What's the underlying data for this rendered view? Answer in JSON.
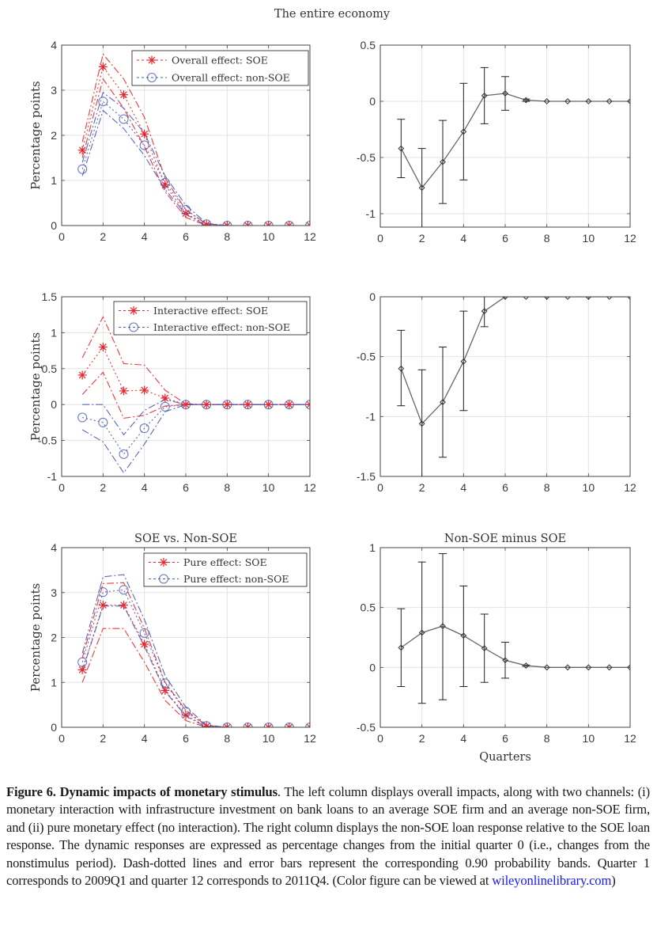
{
  "suptitle": "The entire economy",
  "caption": {
    "label": "Figure 6.",
    "title": "Dynamic impacts of monetary stimulus",
    "body": ". The left column displays overall impacts, along with two channels: (i) monetary interaction with infrastructure investment on bank loans to an average SOE firm and an average non-SOE firm, and (ii) pure monetary effect (no interaction). The right column displays the non-SOE loan response relative to the SOE loan response. The dynamic responses are expressed as percentage changes from the initial quarter 0 (i.e., changes from the nonstimulus period). Dash-dotted lines and error bars represent the corresponding 0.90 probability bands. Quarter 1 corresponds to 2009Q1 and quarter 12 corresponds to 2011Q4. (Color figure can be viewed at ",
    "link_text": "wileyonlinelibrary.com",
    "tail": ")"
  },
  "colors": {
    "soe": "#e8252b",
    "nonsoe": "#4a58b0",
    "diff": "#333333"
  },
  "chart_data": [
    {
      "id": "overall",
      "type": "line",
      "title": "",
      "xlabel": "",
      "ylabel": "Percentage points",
      "xlim": [
        0,
        12
      ],
      "ylim": [
        0,
        4
      ],
      "xticks": [
        0,
        2,
        4,
        6,
        8,
        10,
        12
      ],
      "yticks": [
        0,
        1,
        2,
        3,
        4
      ],
      "ytick_labels": [
        "0",
        "1",
        "2",
        "3",
        "4"
      ],
      "grid": true,
      "legend": "top-right",
      "x": [
        1,
        2,
        3,
        4,
        5,
        6,
        7,
        8,
        9,
        10,
        11,
        12
      ],
      "series": [
        {
          "name": "Overall effect: SOE",
          "group": "soe",
          "marker": "asterisk",
          "values": [
            1.67,
            3.52,
            2.9,
            2.03,
            0.9,
            0.27,
            0.02,
            0,
            0,
            0,
            0,
            0
          ],
          "upper": [
            1.85,
            3.8,
            3.25,
            2.4,
            1.05,
            0.35,
            0.04,
            0,
            0,
            0,
            0,
            0
          ],
          "lower": [
            1.5,
            3.25,
            2.6,
            1.75,
            0.75,
            0.18,
            0.0,
            0,
            0,
            0,
            0,
            0
          ]
        },
        {
          "name": "Overall effect: non-SOE",
          "group": "nonsoe",
          "marker": "circle",
          "values": [
            1.25,
            2.75,
            2.36,
            1.78,
            0.95,
            0.35,
            0.03,
            0,
            0,
            0,
            0,
            0
          ],
          "upper": [
            1.4,
            2.95,
            2.6,
            2.05,
            1.1,
            0.45,
            0.05,
            0,
            0,
            0,
            0,
            0
          ],
          "lower": [
            1.1,
            2.55,
            2.15,
            1.55,
            0.8,
            0.25,
            0.0,
            0,
            0,
            0,
            0,
            0
          ]
        }
      ]
    },
    {
      "id": "overall-diff",
      "type": "line",
      "title": "",
      "xlabel": "",
      "ylabel": "",
      "xlim": [
        0,
        12
      ],
      "ylim": [
        -1.12,
        0.5
      ],
      "xticks": [
        0,
        2,
        4,
        6,
        8,
        10,
        12
      ],
      "yticks": [
        -1,
        -0.5,
        0,
        0.5
      ],
      "ytick_labels": [
        "-1",
        "-0.5",
        "0",
        "0.5"
      ],
      "grid": true,
      "x": [
        1,
        2,
        3,
        4,
        5,
        6,
        7,
        8,
        9,
        10,
        11,
        12
      ],
      "series": [
        {
          "name": "Non-SOE minus SOE",
          "group": "diff",
          "marker": "diamond",
          "values": [
            -0.42,
            -0.77,
            -0.54,
            -0.27,
            0.05,
            0.07,
            0.01,
            0,
            0,
            0,
            0,
            0
          ],
          "upper": [
            -0.16,
            -0.42,
            -0.17,
            0.16,
            0.3,
            0.22,
            0.02,
            0,
            0,
            0,
            0,
            0
          ],
          "lower": [
            -0.68,
            -1.15,
            -0.91,
            -0.7,
            -0.2,
            -0.08,
            0.0,
            0,
            0,
            0,
            0,
            0
          ]
        }
      ]
    },
    {
      "id": "interactive",
      "type": "line",
      "title": "",
      "xlabel": "",
      "ylabel": "Percentage points",
      "xlim": [
        0,
        12
      ],
      "ylim": [
        -1,
        1.5
      ],
      "xticks": [
        0,
        2,
        4,
        6,
        8,
        10,
        12
      ],
      "yticks": [
        -1,
        -0.5,
        0,
        0.5,
        1,
        1.5
      ],
      "ytick_labels": [
        "-1",
        "-0.5",
        "0",
        "0.5",
        "1",
        "1.5"
      ],
      "grid": true,
      "legend": "top-right",
      "x": [
        1,
        2,
        3,
        4,
        5,
        6,
        7,
        8,
        9,
        10,
        11,
        12
      ],
      "series": [
        {
          "name": "Interactive effect: SOE",
          "group": "soe",
          "marker": "asterisk",
          "values": [
            0.41,
            0.8,
            0.19,
            0.2,
            0.09,
            0,
            0,
            0,
            0,
            0,
            0,
            0
          ],
          "upper": [
            0.65,
            1.22,
            0.57,
            0.55,
            0.2,
            0.01,
            0,
            0,
            0,
            0,
            0,
            0
          ],
          "lower": [
            0.14,
            0.45,
            -0.19,
            -0.15,
            -0.02,
            0,
            0,
            0,
            0,
            0,
            0,
            0
          ]
        },
        {
          "name": "Interactive effect: non-SOE",
          "group": "nonsoe",
          "marker": "circle",
          "values": [
            -0.18,
            -0.25,
            -0.69,
            -0.33,
            -0.03,
            0,
            0,
            0,
            0,
            0,
            0,
            0
          ],
          "upper": [
            0.0,
            0.0,
            -0.42,
            -0.08,
            0.07,
            0,
            0,
            0,
            0,
            0,
            0,
            0
          ],
          "lower": [
            -0.35,
            -0.52,
            -0.95,
            -0.55,
            -0.1,
            0,
            0,
            0,
            0,
            0,
            0,
            0
          ]
        }
      ]
    },
    {
      "id": "interactive-diff",
      "type": "line",
      "title": "",
      "xlabel": "",
      "ylabel": "",
      "xlim": [
        0,
        12
      ],
      "ylim": [
        -1.5,
        0
      ],
      "xticks": [
        0,
        2,
        4,
        6,
        8,
        10,
        12
      ],
      "yticks": [
        -1.5,
        -1,
        -0.5,
        0
      ],
      "ytick_labels": [
        "-1.5",
        "-1",
        "-0.5",
        "0"
      ],
      "grid": true,
      "x": [
        1,
        2,
        3,
        4,
        5,
        6,
        7,
        8,
        9,
        10,
        11,
        12
      ],
      "series": [
        {
          "name": "Non-SOE minus SOE",
          "group": "diff",
          "marker": "diamond",
          "values": [
            -0.6,
            -1.06,
            -0.88,
            -0.54,
            -0.12,
            0,
            0,
            0,
            0,
            0,
            0,
            0
          ],
          "upper": [
            -0.28,
            -0.61,
            -0.42,
            -0.12,
            0.0,
            0,
            0,
            0,
            0,
            0,
            0,
            0
          ],
          "lower": [
            -0.91,
            -1.5,
            -1.34,
            -0.95,
            -0.25,
            0,
            0,
            0,
            0,
            0,
            0,
            0
          ]
        }
      ]
    },
    {
      "id": "pure",
      "type": "line",
      "title": "SOE vs. Non-SOE",
      "xlabel": "",
      "ylabel": "Percentage points",
      "xlim": [
        0,
        12
      ],
      "ylim": [
        0,
        4
      ],
      "xticks": [
        0,
        2,
        4,
        6,
        8,
        10,
        12
      ],
      "yticks": [
        0,
        1,
        2,
        3,
        4
      ],
      "ytick_labels": [
        "0",
        "1",
        "2",
        "3",
        "4"
      ],
      "grid": true,
      "legend": "top-right",
      "x": [
        1,
        2,
        3,
        4,
        5,
        6,
        7,
        8,
        9,
        10,
        11,
        12
      ],
      "series": [
        {
          "name": "Pure effect: SOE",
          "group": "soe",
          "marker": "asterisk",
          "values": [
            1.28,
            2.72,
            2.72,
            1.85,
            0.82,
            0.27,
            0.02,
            0,
            0,
            0,
            0,
            0
          ],
          "upper": [
            1.55,
            3.2,
            3.22,
            2.2,
            1.0,
            0.38,
            0.04,
            0,
            0,
            0,
            0,
            0
          ],
          "lower": [
            1.0,
            2.2,
            2.2,
            1.45,
            0.6,
            0.15,
            0.0,
            0,
            0,
            0,
            0,
            0
          ]
        },
        {
          "name": "Pure effect: non-SOE",
          "group": "nonsoe",
          "marker": "circle",
          "values": [
            1.45,
            3.01,
            3.06,
            2.1,
            0.98,
            0.35,
            0.03,
            0,
            0,
            0,
            0,
            0
          ],
          "upper": [
            1.65,
            3.35,
            3.4,
            2.4,
            1.15,
            0.45,
            0.05,
            0,
            0,
            0,
            0,
            0
          ],
          "lower": [
            1.25,
            2.7,
            2.7,
            1.8,
            0.8,
            0.25,
            0.0,
            0,
            0,
            0,
            0,
            0
          ]
        }
      ]
    },
    {
      "id": "pure-diff",
      "type": "line",
      "title": "Non-SOE minus SOE",
      "xlabel": "Quarters",
      "ylabel": "",
      "xlim": [
        0,
        12
      ],
      "ylim": [
        -0.5,
        1
      ],
      "xticks": [
        0,
        2,
        4,
        6,
        8,
        10,
        12
      ],
      "yticks": [
        -0.5,
        0,
        0.5,
        1
      ],
      "ytick_labels": [
        "-0.5",
        "0",
        "0.5",
        "1"
      ],
      "grid": true,
      "x": [
        1,
        2,
        3,
        4,
        5,
        6,
        7,
        8,
        9,
        10,
        11,
        12
      ],
      "series": [
        {
          "name": "Non-SOE minus SOE",
          "group": "diff",
          "marker": "diamond",
          "values": [
            0.165,
            0.29,
            0.345,
            0.265,
            0.16,
            0.06,
            0.015,
            0,
            0,
            0,
            0,
            0
          ],
          "upper": [
            0.49,
            0.88,
            0.95,
            0.68,
            0.445,
            0.21,
            0.02,
            0,
            0,
            0,
            0,
            0
          ],
          "lower": [
            -0.16,
            -0.3,
            -0.27,
            -0.16,
            -0.125,
            -0.09,
            0.01,
            0,
            0,
            0,
            0,
            0
          ]
        }
      ]
    }
  ]
}
